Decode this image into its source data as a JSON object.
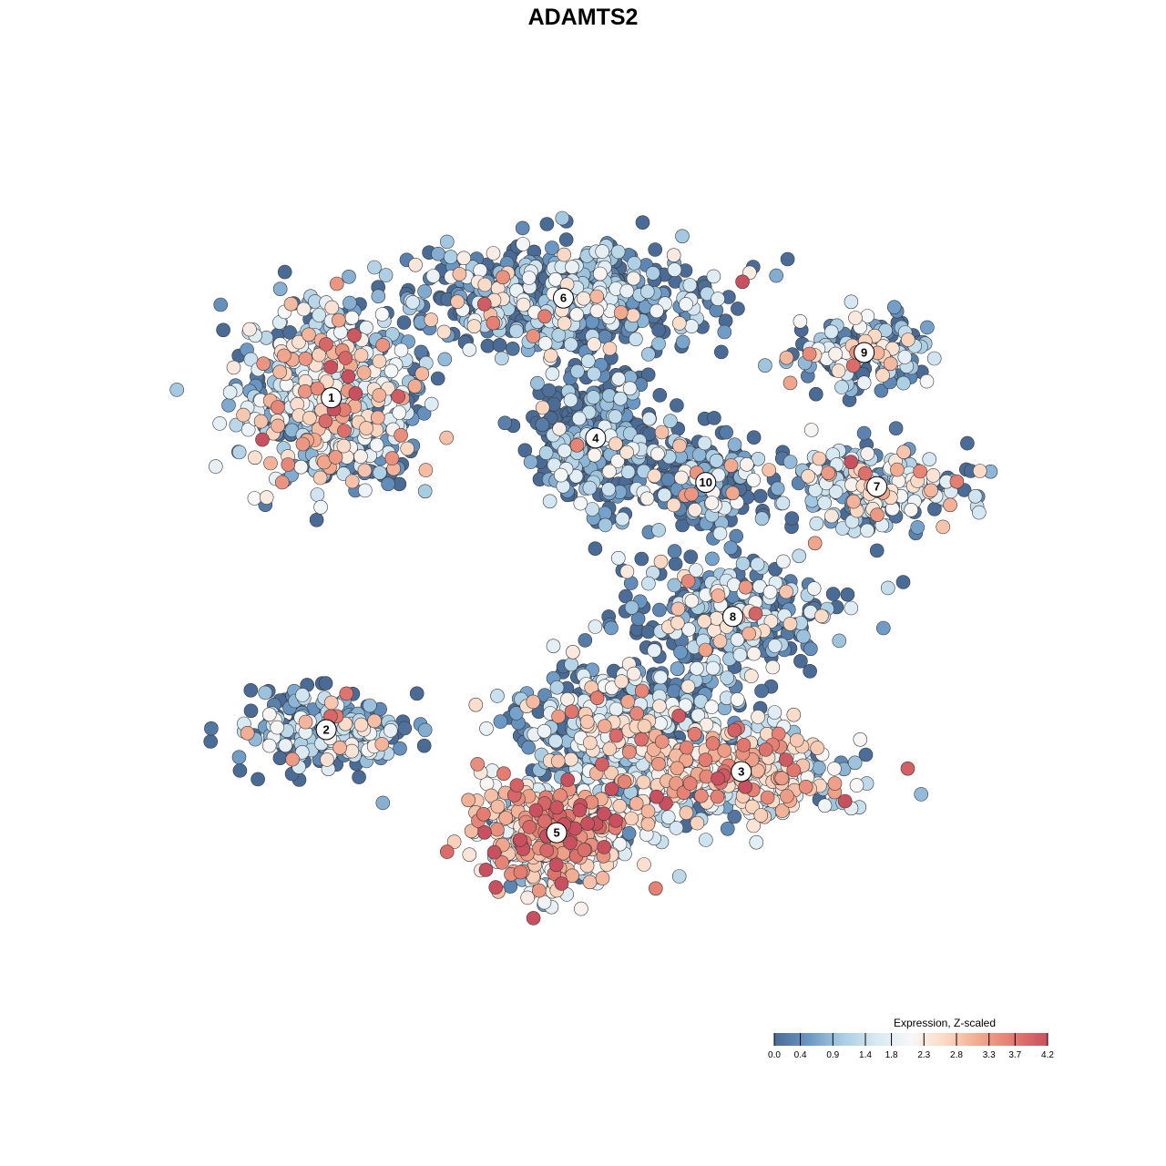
{
  "chart_data": {
    "type": "scatter",
    "title": "ADAMTS2",
    "xlabel": "",
    "ylabel": "",
    "xlim": [
      0,
      100
    ],
    "ylim": [
      0,
      100
    ],
    "grid": false,
    "legend": {
      "title": "Expression, Z-scaled",
      "placement": "bottom-right",
      "range": [
        0.0,
        4.2
      ],
      "tick_labels": [
        "0.0",
        "0.4",
        "0.9",
        "1.4",
        "1.8",
        "2.3",
        "2.8",
        "3.3",
        "3.7",
        "4.2"
      ],
      "tick_values": [
        0.0,
        0.4,
        0.9,
        1.4,
        1.8,
        2.3,
        2.8,
        3.3,
        3.7,
        4.2
      ]
    },
    "color_scale": [
      "#4a6b95",
      "#6a97c4",
      "#a9cde3",
      "#d8e9f3",
      "#f7f7f7",
      "#fbd9c4",
      "#f1a98f",
      "#e37a70",
      "#c9505e"
    ],
    "clusters": [
      {
        "label": "1",
        "x": 17.6,
        "y": 72.1,
        "sx": 9.5,
        "sy": 10.0,
        "n": 650,
        "mean_expr": 1.5
      },
      {
        "label": "2",
        "x": 17.0,
        "y": 32.5,
        "sx": 9.0,
        "sy": 4.2,
        "n": 240,
        "mean_expr": 0.9
      },
      {
        "label": "3",
        "x": 66.0,
        "y": 27.5,
        "sx": 11.0,
        "sy": 5.5,
        "n": 380,
        "mean_expr": 2.2
      },
      {
        "label": "4",
        "x": 48.8,
        "y": 67.3,
        "sx": 6.5,
        "sy": 7.0,
        "n": 360,
        "mean_expr": 0.3
      },
      {
        "label": "5",
        "x": 44.2,
        "y": 20.2,
        "sx": 9.0,
        "sy": 6.0,
        "n": 480,
        "mean_expr": 2.4
      },
      {
        "label": "6",
        "x": 45.0,
        "y": 84.0,
        "sx": 15.0,
        "sy": 5.5,
        "n": 600,
        "mean_expr": 0.8
      },
      {
        "label": "7",
        "x": 82.0,
        "y": 61.5,
        "sx": 9.0,
        "sy": 4.5,
        "n": 260,
        "mean_expr": 1.3
      },
      {
        "label": "8",
        "x": 65.0,
        "y": 46.0,
        "sx": 11.0,
        "sy": 6.5,
        "n": 330,
        "mean_expr": 0.8
      },
      {
        "label": "9",
        "x": 80.5,
        "y": 77.5,
        "sx": 8.0,
        "sy": 3.8,
        "n": 170,
        "mean_expr": 1.1
      },
      {
        "label": "10",
        "x": 61.8,
        "y": 62.0,
        "sx": 7.5,
        "sy": 5.0,
        "n": 180,
        "mean_expr": 0.5
      },
      {
        "label": "",
        "x": 52.0,
        "y": 32.5,
        "sx": 10.0,
        "sy": 7.5,
        "n": 520,
        "mean_expr": 1.2
      }
    ]
  }
}
